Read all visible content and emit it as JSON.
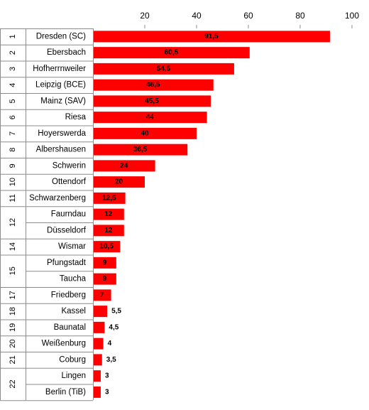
{
  "chart_data": {
    "type": "bar",
    "orientation": "horizontal",
    "xlim": [
      0,
      100
    ],
    "x_ticks": [
      "20",
      "40",
      "60",
      "80",
      "100"
    ],
    "grid": false,
    "bar_color": "#ff0000",
    "ranks": [
      {
        "label": "1",
        "span": 1
      },
      {
        "label": "2",
        "span": 1
      },
      {
        "label": "3",
        "span": 1
      },
      {
        "label": "4",
        "span": 1
      },
      {
        "label": "5",
        "span": 1
      },
      {
        "label": "6",
        "span": 1
      },
      {
        "label": "7",
        "span": 1
      },
      {
        "label": "8",
        "span": 1
      },
      {
        "label": "9",
        "span": 1
      },
      {
        "label": "10",
        "span": 1
      },
      {
        "label": "11",
        "span": 1
      },
      {
        "label": "12",
        "span": 2
      },
      {
        "label": "14",
        "span": 1
      },
      {
        "label": "15",
        "span": 2
      },
      {
        "label": "17",
        "span": 1
      },
      {
        "label": "18",
        "span": 1
      },
      {
        "label": "19",
        "span": 1
      },
      {
        "label": "20",
        "span": 1
      },
      {
        "label": "21",
        "span": 1
      },
      {
        "label": "22",
        "span": 2
      }
    ],
    "categories": [
      "Dresden (SC)",
      "Ebersbach",
      "Hofherrnweiler",
      "Leipzig (BCE)",
      "Mainz (SAV)",
      "Riesa",
      "Hoyerswerda",
      "Albershausen",
      "Schwerin",
      "Ottendorf",
      "Schwarzenberg",
      "Faurndau",
      "Düsseldorf",
      "Wismar",
      "Pfungstadt",
      "Taucha",
      "Friedberg",
      "Kassel",
      "Baunatal",
      "Weißenburg",
      "Coburg",
      "Lingen",
      "Berlin (TiB)"
    ],
    "values": [
      91.5,
      60.5,
      54.5,
      46.5,
      45.5,
      44,
      40,
      36.5,
      24,
      20,
      12.5,
      12,
      12,
      10.5,
      9,
      9,
      7,
      5.5,
      4.5,
      4,
      3.5,
      3,
      3
    ],
    "value_labels": [
      "91,5",
      "60,5",
      "54,5",
      "46,5",
      "45,5",
      "44",
      "40",
      "36,5",
      "24",
      "20",
      "12,5",
      "12",
      "12",
      "10,5",
      "9",
      "9",
      "7",
      "5,5",
      "4,5",
      "4",
      "3,5",
      "3",
      "3"
    ]
  }
}
